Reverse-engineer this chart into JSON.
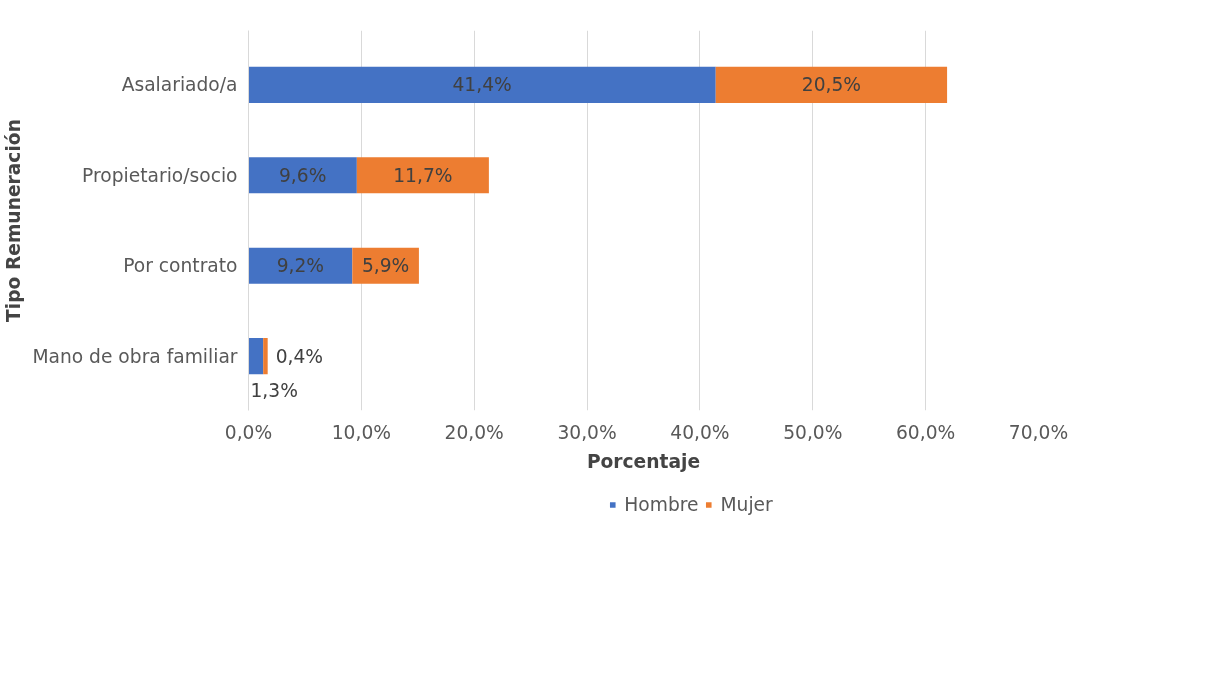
{
  "chart_data": {
    "type": "bar",
    "orientation": "horizontal",
    "stacked": true,
    "categories": [
      "Asalariado/a",
      "Propietario/socio",
      "Por contrato",
      "Mano de obra familiar"
    ],
    "series": [
      {
        "name": "Hombre",
        "color": "#4472c4",
        "values": [
          41.4,
          9.6,
          9.2,
          1.3
        ],
        "value_labels": [
          "41,4%",
          "9,6%",
          "9,2%",
          "1,3%"
        ]
      },
      {
        "name": "Mujer",
        "color": "#ed7d31",
        "values": [
          20.5,
          11.7,
          5.9,
          0.4
        ],
        "value_labels": [
          "20,5%",
          "11,7%",
          "5,9%",
          "0,4%"
        ]
      }
    ],
    "xlim": [
      0,
      70
    ],
    "xticks": [
      {
        "value": 0,
        "label": "0,0%"
      },
      {
        "value": 10,
        "label": "10,0%"
      },
      {
        "value": 20,
        "label": "20,0%"
      },
      {
        "value": 30,
        "label": "30,0%"
      },
      {
        "value": 40,
        "label": "40,0%"
      },
      {
        "value": 50,
        "label": "50,0%"
      },
      {
        "value": 60,
        "label": "60,0%"
      },
      {
        "value": 70,
        "label": "70,0%"
      }
    ],
    "xlabel": "Porcentaje",
    "ylabel": "Tipo Remuneración",
    "grid": "x",
    "legend": "bottom"
  }
}
